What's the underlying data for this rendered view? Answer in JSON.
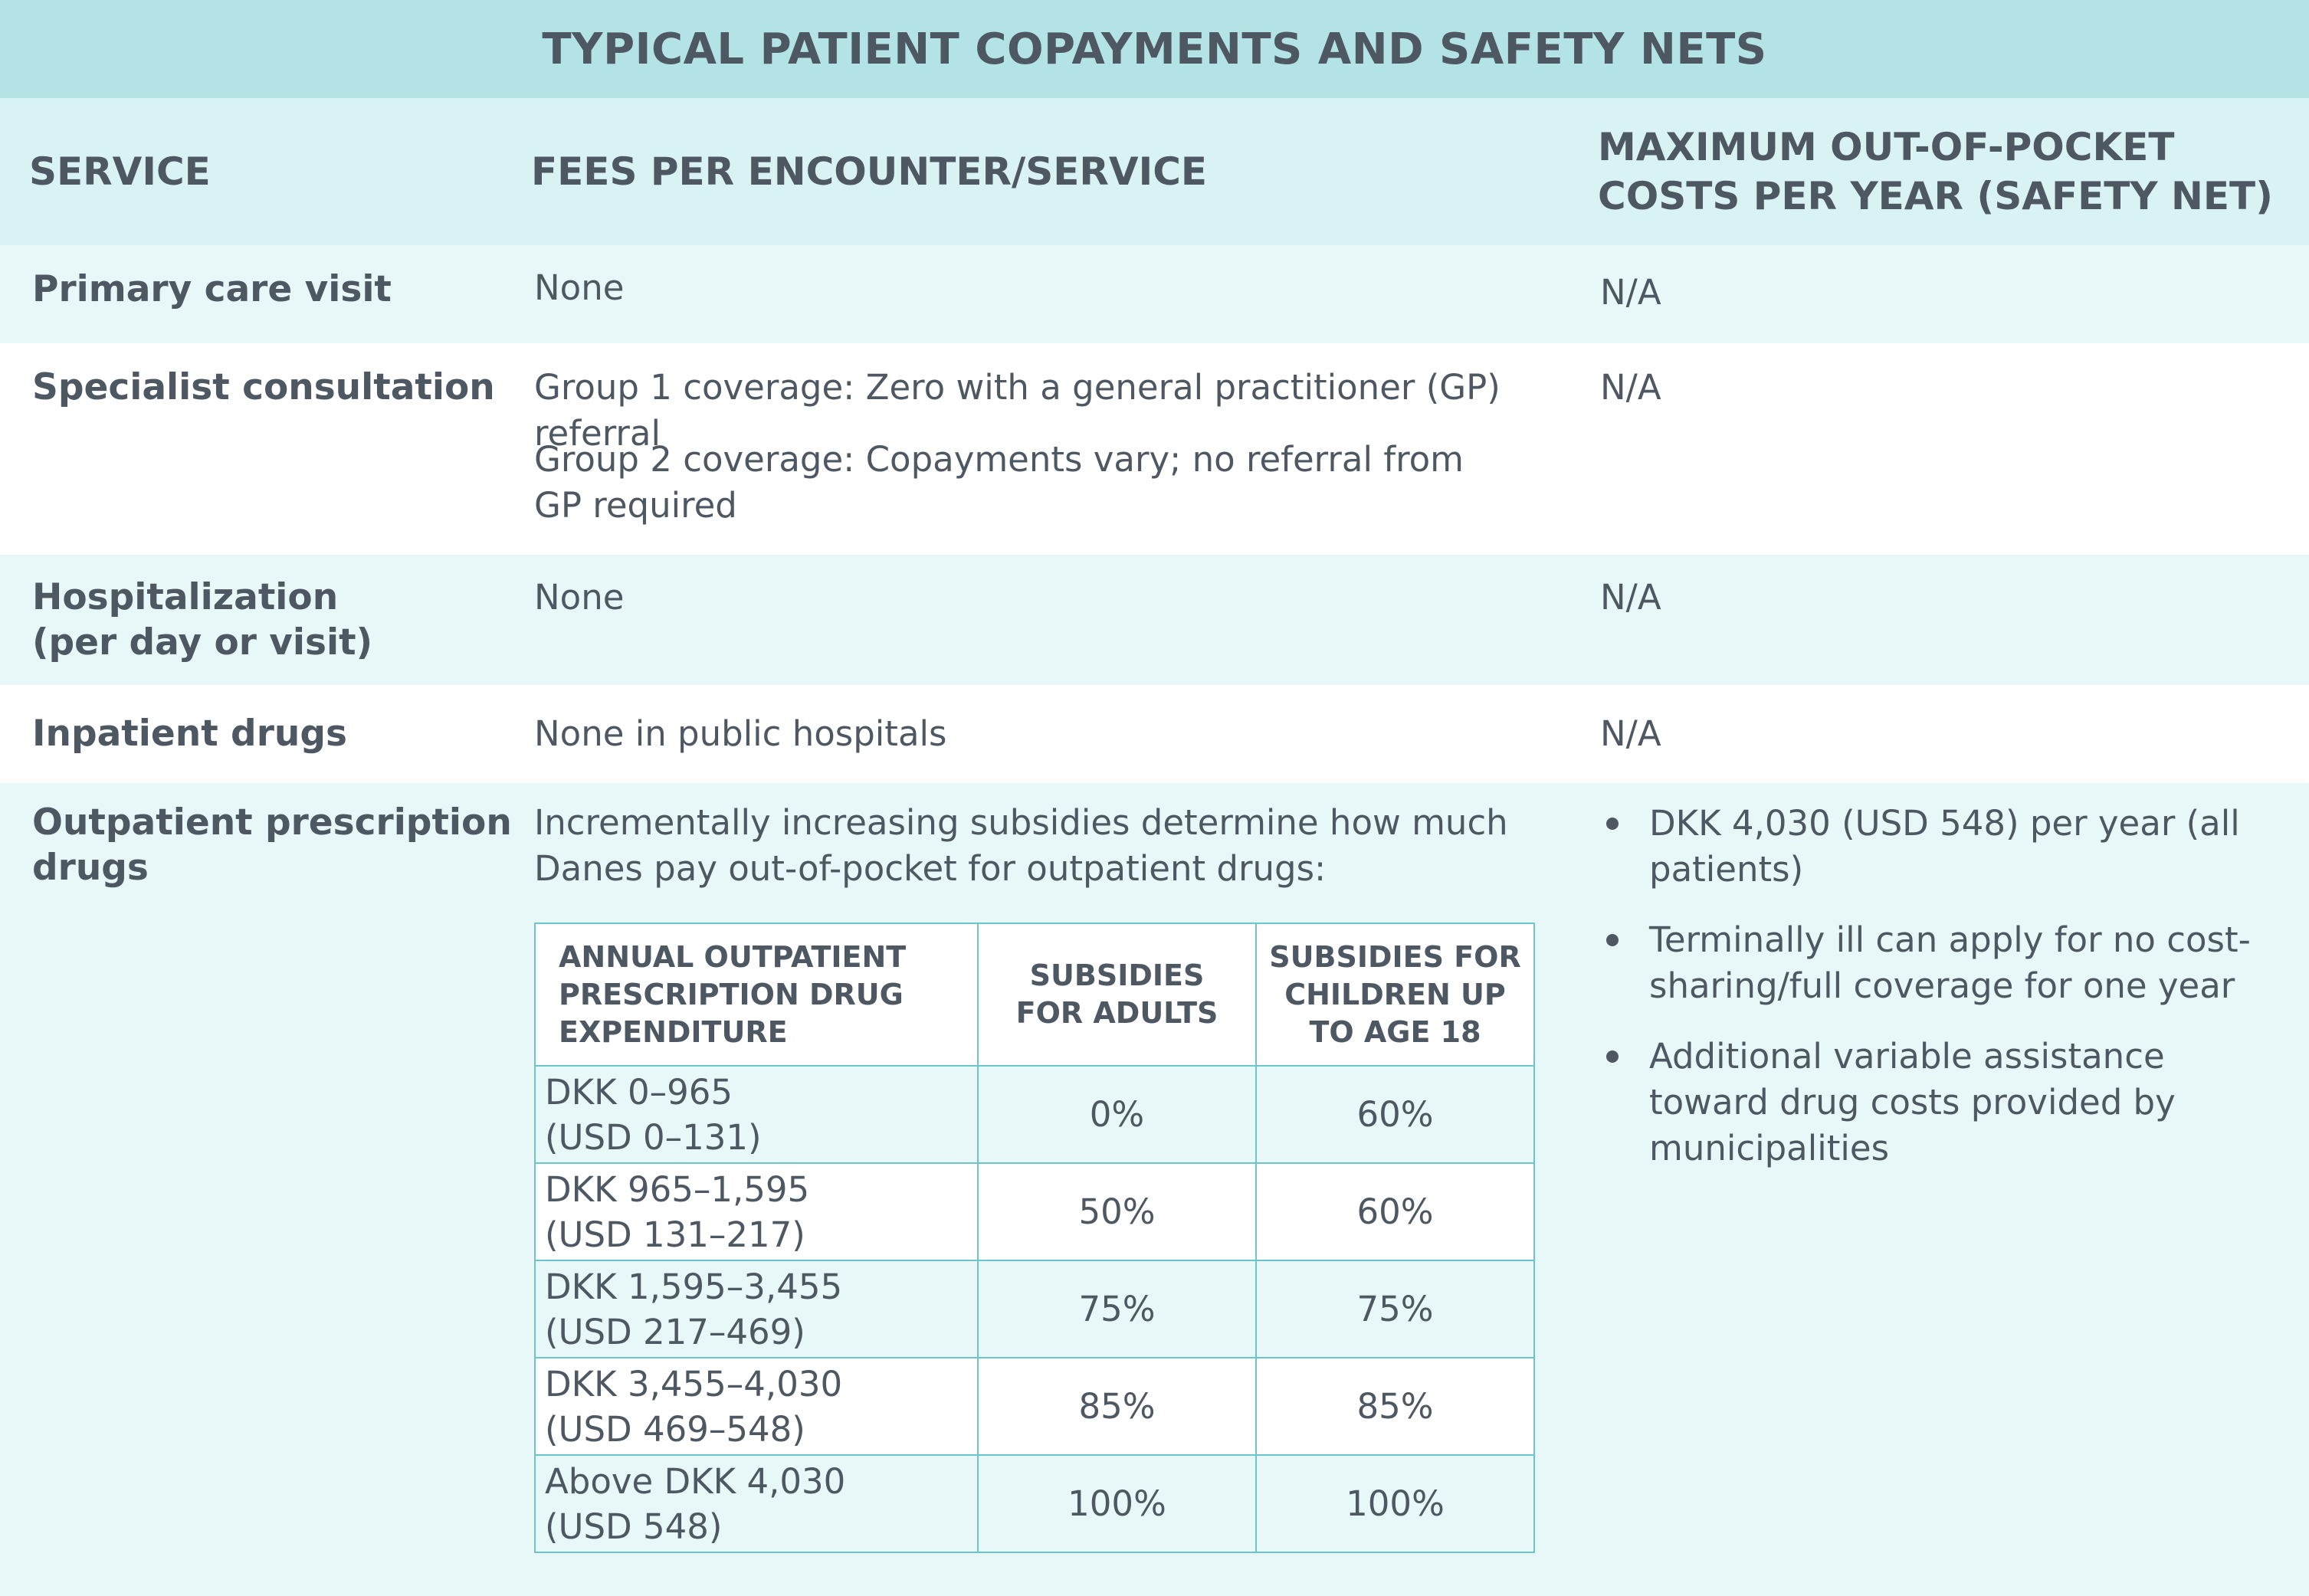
{
  "title": "TYPICAL PATIENT COPAYMENTS AND SAFETY NETS",
  "headers": {
    "service": "SERVICE",
    "fees": "FEES PER ENCOUNTER/SERVICE",
    "max_line1": "MAXIMUM OUT-OF-POCKET",
    "max_line2": "COSTS PER YEAR (SAFETY NET)"
  },
  "rows": [
    {
      "service": "Primary care visit",
      "fee": "None",
      "max": "N/A"
    },
    {
      "service": "Specialist consultation",
      "fee_line1": "Group 1 coverage: Zero with a general practitioner (GP) referral",
      "fee_line2": "Group 2 coverage: Copayments vary; no referral from GP required",
      "max": "N/A"
    },
    {
      "service_line1": "Hospitalization",
      "service_line2": "(per day or visit)",
      "fee": "None",
      "max": "N/A"
    },
    {
      "service": "Inpatient drugs",
      "fee": "None in public hospitals",
      "max": "N/A"
    },
    {
      "service_line1": "Outpatient prescription",
      "service_line2": "drugs",
      "fee": "Incrementally increasing subsidies determine how much Danes pay out-of-pocket for outpatient drugs:"
    }
  ],
  "subsidy_table": {
    "headers": {
      "expenditure": [
        "ANNUAL OUTPATIENT",
        "PRESCRIPTION DRUG",
        "EXPENDITURE"
      ],
      "adults": [
        "SUBSIDIES",
        "FOR ADULTS"
      ],
      "children": [
        "SUBSIDIES FOR",
        "CHILDREN UP",
        "TO AGE 18"
      ]
    },
    "rows": [
      {
        "range1": "DKK 0–965",
        "range2": "(USD 0–131)",
        "adults": "0%",
        "children": "60%"
      },
      {
        "range1": "DKK 965–1,595",
        "range2": "(USD 131–217)",
        "adults": "50%",
        "children": "60%"
      },
      {
        "range1": "DKK 1,595–3,455",
        "range2": "(USD 217–469)",
        "adults": "75%",
        "children": "75%"
      },
      {
        "range1": "DKK 3,455–4,030",
        "range2": "(USD 469–548)",
        "adults": "85%",
        "children": "85%"
      },
      {
        "range1": "Above DKK 4,030",
        "range2": "(USD 548)",
        "adults": "100%",
        "children": "100%"
      }
    ]
  },
  "safety_net_bullets": [
    "DKK 4,030 (USD 548) per year (all patients)",
    "Terminally ill can apply for no cost-sharing/full coverage for one year",
    "Additional variable assistance toward drug costs provided by municipalities"
  ]
}
